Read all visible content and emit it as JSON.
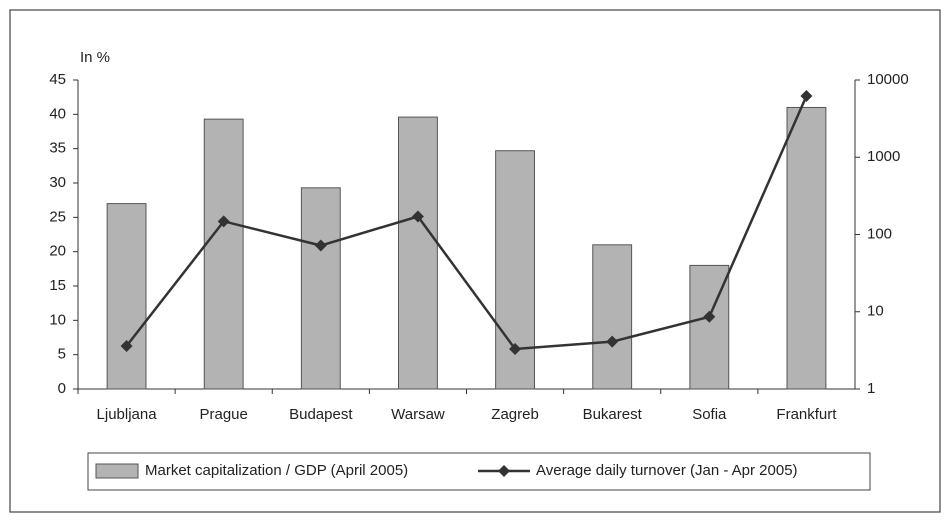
{
  "chart_data": {
    "type": "bar",
    "y_label": "In %",
    "categories": [
      "Ljubljana",
      "Prague",
      "Budapest",
      "Warsaw",
      "Zagreb",
      "Bukarest",
      "Sofia",
      "Frankfurt"
    ],
    "series": [
      {
        "name": "Market capitalization / GDP (April 2005)",
        "type": "bar",
        "color": "#b3b3b3",
        "values": [
          27,
          39.3,
          29.3,
          39.6,
          34.7,
          21,
          18,
          41
        ]
      },
      {
        "name": "Average daily turnover (Jan - Apr 2005)",
        "type": "line",
        "axis": "y2",
        "color": "#333333",
        "values": [
          3.6,
          148,
          72,
          171,
          3.3,
          4.1,
          8.6,
          6200
        ]
      }
    ],
    "ylim": [
      0,
      45
    ],
    "yticks": [
      0,
      5,
      10,
      15,
      20,
      25,
      30,
      35,
      40,
      45
    ],
    "y2lim": [
      1,
      10000
    ],
    "y2ticks": [
      1,
      10,
      100,
      1000,
      10000
    ],
    "y2log": true,
    "grid": false,
    "legend": "bottom"
  }
}
